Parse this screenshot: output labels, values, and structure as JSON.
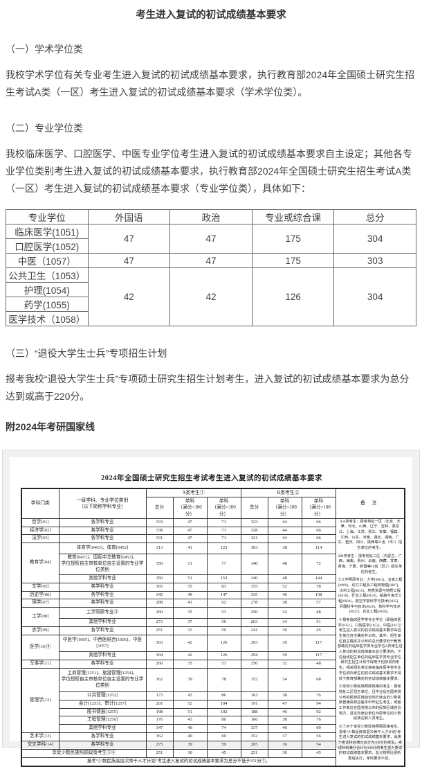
{
  "page": {
    "title": "考生进入复试的初试成绩基本要求",
    "sections": [
      {
        "heading": "（一）学术学位类",
        "body": "我校学术学位有关专业考生进入复试的初试成绩基本要求，执行教育部2024年全国硕士研究生招生考试A类（一区）考生进入复试的初试成绩基本要求（学术学位类）。"
      },
      {
        "heading": "（二）专业学位类",
        "body": "我校临床医学、口腔医学、中医专业学位考生进入复试的初试成绩基本要求自主设定；其他各专业学位类别考生进入复试的初试成绩基本要求，执行教育部2024年全国硕士研究生招生考试A类（一区）考生进入复试的初试成绩基本要求（专业学位类），具体如下："
      },
      {
        "heading": "（三）“退役大学生士兵”专项招生计划",
        "body": "报考我校“退役大学生士兵”专项硕士研究生招生计划考生，进入复试的初试成绩基本要求为总分达到或高于220分。"
      }
    ],
    "attachment_heading": "附2024年考研国家线"
  },
  "score_table": {
    "headers": [
      "专业学位",
      "外国语",
      "政治",
      "专业或综合课",
      "总分"
    ],
    "groups": [
      {
        "majors": [
          "临床医学(1051)",
          "口腔医学(1052)"
        ],
        "foreign": "47",
        "politics": "47",
        "comprehensive": "175",
        "total": "304"
      },
      {
        "majors": [
          "中医（1057）"
        ],
        "foreign": "47",
        "politics": "47",
        "comprehensive": "175",
        "total": "303"
      },
      {
        "majors": [
          "公共卫生（1053）",
          "护理(1054)",
          "药学(1055)",
          "医学技术（1058）"
        ],
        "foreign": "42",
        "politics": "42",
        "comprehensive": "126",
        "total": "304"
      }
    ]
  },
  "national_table": {
    "title": "2024年全国硕士研究生招生考试考生进入复试的初试成绩基本要求",
    "headers": {
      "subject": "学科门类",
      "spec": "一级学科、专业学位类别\n（以下简称学科专业）",
      "group_a": "A类考生①",
      "group_b": "B类考生②",
      "sub": [
        "总分",
        "单科\n（满分=100分）",
        "单科\n（满分>100分）"
      ],
      "remarks": "备  注"
    },
    "groups": [
      {
        "label": "哲学[01]",
        "rows": [
          {
            "spec": "各学科专业",
            "a": [
              "333",
              "47",
              "71"
            ],
            "b": [
              "323",
              "44",
              "66"
            ]
          }
        ]
      },
      {
        "label": "经济学[02]",
        "rows": [
          {
            "spec": "各学科专业",
            "a": [
              "338",
              "47",
              "71"
            ],
            "b": [
              "328",
              "44",
              "66"
            ]
          }
        ]
      },
      {
        "label": "法学[03]",
        "rows": [
          {
            "spec": "各学科专业",
            "a": [
              "331",
              "47",
              "71"
            ],
            "b": [
              "321",
              "44",
              "66"
            ]
          }
        ]
      },
      {
        "label": "教育学[04]",
        "rows": [
          {
            "spec": "体育学[0403]、体育[0452]",
            "a": [
              "313",
              "41",
              "123"
            ],
            "b": [
              "303",
              "38",
              "114"
            ]
          },
          {
            "spec": "教育[0451]、国际中文教育[0453]、\n学位授权自主审核单位自主设置的专业学位类别",
            "a": [
              "350",
              "51",
              "77"
            ],
            "b": [
              "340",
              "48",
              "72"
            ]
          },
          {
            "spec": "其他学科专业",
            "a": [
              "350",
              "51",
              "153"
            ],
            "b": [
              "340",
              "48",
              "144"
            ]
          }
        ]
      },
      {
        "label": "文学[05]",
        "rows": [
          {
            "spec": "各学科专业",
            "a": [
              "365",
              "55",
              "83"
            ],
            "b": [
              "355",
              "52",
              "78"
            ]
          }
        ]
      },
      {
        "label": "历史学[06]",
        "rows": [
          {
            "spec": "各学科专业",
            "a": [
              "345",
              "49",
              "147"
            ],
            "b": [
              "335",
              "46",
              "138"
            ]
          }
        ]
      },
      {
        "label": "理学[07]",
        "rows": [
          {
            "spec": "各学科专业",
            "a": [
              "288",
              "41",
              "62"
            ],
            "b": [
              "278",
              "38",
              "57"
            ]
          }
        ]
      },
      {
        "label": "工学[08]",
        "rows": [
          {
            "spec": "工学照顾专业③",
            "a": [
              "260",
              "35",
              "53"
            ],
            "b": [
              "250",
              "32",
              "48"
            ]
          },
          {
            "spec": "其他学科专业",
            "a": [
              "273",
              "37",
              "56"
            ],
            "b": [
              "263",
              "34",
              "51"
            ]
          }
        ]
      },
      {
        "label": "农学[09]",
        "rows": [
          {
            "spec": "各学科专业",
            "a": [
              "251",
              "33",
              "50"
            ],
            "b": [
              "241",
              "30",
              "45"
            ]
          }
        ]
      },
      {
        "label": "医学[10]④",
        "rows": [
          {
            "spec": "中医学[1005]、中西医结合[1006]、中医[1057]",
            "a": [
              "303",
              "42",
              "126"
            ],
            "b": [
              "293",
              "39",
              "117"
            ]
          },
          {
            "spec": "其他学科专业",
            "a": [
              "304",
              "42",
              "126"
            ],
            "b": [
              "294",
              "39",
              "117"
            ]
          }
        ]
      },
      {
        "label": "军事学[11]",
        "rows": [
          {
            "spec": "各学科专业",
            "a": [
              "260",
              "35",
              "53"
            ],
            "b": [
              "250",
              "32",
              "48"
            ]
          }
        ]
      },
      {
        "label": "管理学[12]",
        "rows": [
          {
            "spec": "工商管理[1251]、旅游管理[1254]、\n学位授权自主审核单位自主设置的专业学位类别",
            "a": [
              "162",
              "39",
              "78"
            ],
            "b": [
              "152",
              "34",
              "68"
            ]
          },
          {
            "spec": "公共管理[1252]",
            "a": [
              "173",
              "43",
              "86"
            ],
            "b": [
              "163",
              "38",
              "76"
            ]
          },
          {
            "spec": "会计[1253]、审计[1257]",
            "a": [
              "201",
              "52",
              "104"
            ],
            "b": [
              "191",
              "47",
              "94"
            ]
          },
          {
            "spec": "图书情报[1255]",
            "a": [
              "198",
              "51",
              "102"
            ],
            "b": [
              "188",
              "46",
              "92"
            ]
          },
          {
            "spec": "工程管理[1256]",
            "a": [
              "176",
              "43",
              "86"
            ],
            "b": [
              "166",
              "38",
              "76"
            ]
          },
          {
            "spec": "其他学科专业",
            "a": [
              "347",
              "49",
              "74"
            ],
            "b": [
              "337",
              "46",
              "69"
            ]
          }
        ]
      },
      {
        "label": "艺术学[13]",
        "rows": [
          {
            "spec": "各学科专业",
            "a": [
              "362",
              "40",
              "60"
            ],
            "b": [
              "352",
              "37",
              "56"
            ]
          }
        ]
      },
      {
        "label": "交叉学科[14]",
        "rows": [
          {
            "spec": "各学科专业",
            "a": [
              "275",
              "39",
              "59"
            ],
            "b": [
              "265",
              "36",
              "54"
            ]
          }
        ]
      },
      {
        "label": "享受少数民族照顾政策考生⑤⑥",
        "merge_label": true,
        "rows": [
          {
            "a": [
              "251",
              "30",
              "45"
            ],
            "b": [
              "251",
              "30",
              "45"
            ]
          }
        ]
      }
    ],
    "footnote": "报考“少数民族高层次骨干人才计划”考生进入复试的初试成绩基本要求为总分不低于251分⑦。",
    "remarks": [
      "①A类考生：报考地处一区（北京、天津、河北、山西、辽宁、吉林、黑龙江、上海、江苏、浙江、安徽、福建、江西、山东、河南、湖北、湖南、广东、重庆、四川、陕西等21省（市））招生单位的考生。",
      "②B类考生：报考地处二区（内蒙古、广西、海南、贵州、云南、西藏、甘肃、青海、宁夏、新疆等10省（区））招生单位的考生。",
      "③工学照顾专业：力学[0801]、冶金工程[0806]、动力工程及工程热物理[0807]、水利工程[0815]、地质资源与地质工程[0818]、矿业工程[0819]、船舶与海洋工程[0824]、航空宇航科学与技术[0825]、兵器科学与技术[0826]、核科学与技术[0827]、农业工程[0828]。",
      "④报考临床医学类专业学位（即临床医学[1051]、口腔医学[1052]、中医[1057]）考生进入复试的初试成绩基本要求由招生单位自主确定并公布。其中，招生单位自主确定并公布的总分要求低于教育部确定的临床医学类专业学位A类考生进入复试的初试成绩基本总分要求的，下达给该招生单位的临床医学类专业学位研究生招生计划不得用于招收调剂考生。相关招生单位接收临床医学类专业学位调剂考生的初试成绩基本要求不得低于教育部确定的初试成绩基本要求。",
      "⑤享受少数民族照顾政策的考生：报考地处二区招生单位，且毕业后在国务院公布的民族区域自治地方就业的少数民族普通高校应届本科毕业生考生；或者工作单位在国务院公布的民族区域自治地方，且定向就业单位为原单位的少数民族在职人员考生。",
      "⑥⑦对于享受少数民族照顾政策考生、报考“少数民族高层次骨干人才计划”考生进入复试的初试成绩基本要求，适用于考试科目满分合计为500分的考生。考试科目满分合计为300分的考生进入复试的初试成绩基本要求，总分按照比例折算后执行，单科要求不变。"
    ]
  }
}
